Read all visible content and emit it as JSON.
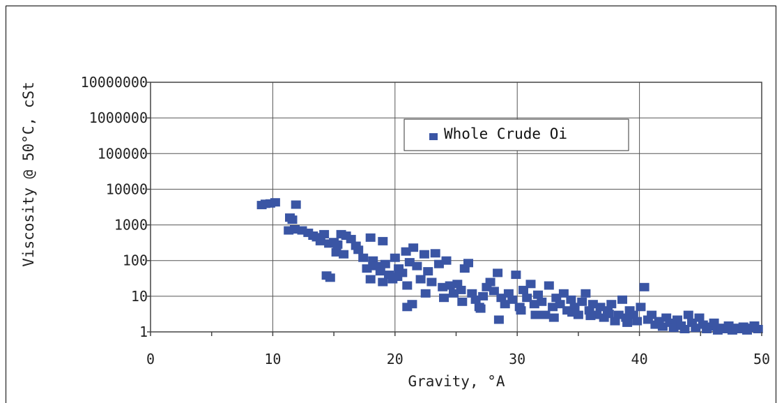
{
  "chart_data": {
    "type": "scatter",
    "xlabel": "Gravity, °A",
    "ylabel": "Viscosity @ 50°C, cSt",
    "xlim": [
      0,
      50
    ],
    "ylim": [
      1,
      10000000
    ],
    "y_scale": "log",
    "grid": true,
    "legend_position": "top-center",
    "x_ticks": [
      "0",
      "10",
      "20",
      "30",
      "40",
      "50"
    ],
    "y_ticks": [
      "1",
      "10",
      "100",
      "1000",
      "10000",
      "100000",
      "1000000",
      "10000000"
    ],
    "marker_color": "#3a55a4",
    "series": [
      {
        "name": "Whole Crude Oi",
        "points": [
          [
            9.1,
            3600
          ],
          [
            9.4,
            3900
          ],
          [
            9.8,
            4000
          ],
          [
            10.2,
            4300
          ],
          [
            11.4,
            1600
          ],
          [
            11.6,
            1400
          ],
          [
            11.9,
            3700
          ],
          [
            11.3,
            700
          ],
          [
            11.8,
            750
          ],
          [
            12.4,
            700
          ],
          [
            12.9,
            600
          ],
          [
            13.3,
            500
          ],
          [
            13.6,
            450
          ],
          [
            13.9,
            350
          ],
          [
            14.2,
            550
          ],
          [
            14.6,
            300
          ],
          [
            15.0,
            330
          ],
          [
            15.3,
            280
          ],
          [
            15.6,
            550
          ],
          [
            16.0,
            500
          ],
          [
            16.4,
            400
          ],
          [
            16.8,
            260
          ],
          [
            17.0,
            200
          ],
          [
            14.4,
            38
          ],
          [
            14.7,
            33
          ],
          [
            15.2,
            170
          ],
          [
            15.8,
            150
          ],
          [
            17.4,
            120
          ],
          [
            17.7,
            60
          ],
          [
            18.0,
            440
          ],
          [
            18.2,
            100
          ],
          [
            18.5,
            70
          ],
          [
            18.8,
            50
          ],
          [
            19.0,
            350
          ],
          [
            19.2,
            80
          ],
          [
            19.5,
            40
          ],
          [
            19.8,
            30
          ],
          [
            20.0,
            120
          ],
          [
            20.3,
            60
          ],
          [
            20.6,
            45
          ],
          [
            20.9,
            180
          ],
          [
            21.2,
            90
          ],
          [
            21.5,
            230
          ],
          [
            21.8,
            70
          ],
          [
            22.1,
            30
          ],
          [
            22.4,
            150
          ],
          [
            22.7,
            50
          ],
          [
            23.0,
            25
          ],
          [
            23.3,
            160
          ],
          [
            23.6,
            80
          ],
          [
            21.0,
            5
          ],
          [
            21.4,
            6
          ],
          [
            23.9,
            18
          ],
          [
            24.2,
            100
          ],
          [
            24.5,
            20
          ],
          [
            24.8,
            12
          ],
          [
            25.1,
            22
          ],
          [
            25.4,
            15
          ],
          [
            25.7,
            60
          ],
          [
            26.0,
            85
          ],
          [
            26.3,
            12
          ],
          [
            26.6,
            8
          ],
          [
            26.9,
            5
          ],
          [
            27.2,
            10
          ],
          [
            27.5,
            18
          ],
          [
            27.8,
            25
          ],
          [
            28.1,
            14
          ],
          [
            28.4,
            45
          ],
          [
            28.7,
            9
          ],
          [
            29.0,
            6
          ],
          [
            29.3,
            12
          ],
          [
            29.6,
            8
          ],
          [
            29.9,
            40
          ],
          [
            30.2,
            5
          ],
          [
            30.5,
            15
          ],
          [
            30.8,
            9
          ],
          [
            31.1,
            22
          ],
          [
            31.4,
            6
          ],
          [
            31.7,
            11
          ],
          [
            32.0,
            7
          ],
          [
            32.3,
            3
          ],
          [
            32.6,
            20
          ],
          [
            32.9,
            5
          ],
          [
            33.2,
            9
          ],
          [
            33.5,
            6
          ],
          [
            33.8,
            12
          ],
          [
            34.1,
            4
          ],
          [
            34.4,
            8
          ],
          [
            34.7,
            5
          ],
          [
            35.0,
            3
          ],
          [
            35.3,
            7
          ],
          [
            35.6,
            12
          ],
          [
            35.9,
            4
          ],
          [
            36.2,
            6
          ],
          [
            36.5,
            3
          ],
          [
            36.8,
            5
          ],
          [
            37.1,
            2.5
          ],
          [
            37.4,
            4
          ],
          [
            37.7,
            6
          ],
          [
            38.0,
            2
          ],
          [
            38.3,
            3
          ],
          [
            38.6,
            8
          ],
          [
            38.9,
            2.5
          ],
          [
            39.2,
            4
          ],
          [
            39.5,
            3
          ],
          [
            39.8,
            2
          ],
          [
            40.1,
            5
          ],
          [
            40.4,
            18
          ],
          [
            40.7,
            2.2
          ],
          [
            41.0,
            3
          ],
          [
            41.3,
            1.6
          ],
          [
            41.6,
            2
          ],
          [
            41.9,
            1.4
          ],
          [
            42.2,
            2.5
          ],
          [
            42.5,
            1.8
          ],
          [
            42.8,
            1.3
          ],
          [
            43.1,
            2.2
          ],
          [
            43.4,
            1.5
          ],
          [
            43.7,
            1.2
          ],
          [
            44.0,
            3
          ],
          [
            44.3,
            1.8
          ],
          [
            44.6,
            1.3
          ],
          [
            44.9,
            2.5
          ],
          [
            45.2,
            1.6
          ],
          [
            45.5,
            1.2
          ],
          [
            45.8,
            1.4
          ],
          [
            46.1,
            1.8
          ],
          [
            46.4,
            1.1
          ],
          [
            46.7,
            1.3
          ],
          [
            47.0,
            1.2
          ],
          [
            47.3,
            1.5
          ],
          [
            47.6,
            1.1
          ],
          [
            47.9,
            1.3
          ],
          [
            48.2,
            1.2
          ],
          [
            48.5,
            1.4
          ],
          [
            48.8,
            1.1
          ],
          [
            49.1,
            1.3
          ],
          [
            49.4,
            1.5
          ],
          [
            49.7,
            1.2
          ],
          [
            30.3,
            4
          ],
          [
            31.5,
            3
          ],
          [
            33.0,
            2.5
          ],
          [
            34.5,
            3.5
          ],
          [
            36.0,
            2.8
          ],
          [
            37.5,
            3.2
          ],
          [
            39.0,
            1.8
          ],
          [
            28.5,
            2.2
          ],
          [
            27.0,
            4.5
          ],
          [
            25.5,
            7
          ],
          [
            24.0,
            9
          ],
          [
            22.5,
            12
          ],
          [
            21.0,
            20
          ],
          [
            20.2,
            35
          ],
          [
            19.0,
            25
          ],
          [
            18.0,
            30
          ]
        ]
      }
    ]
  }
}
